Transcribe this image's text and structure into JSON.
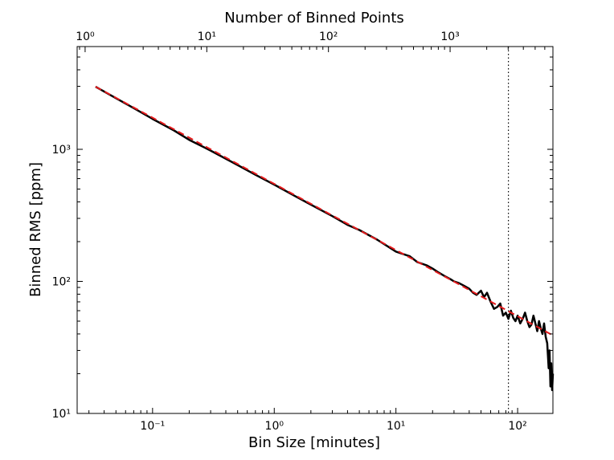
{
  "chart_data": {
    "type": "line",
    "xlabel": "Bin Size [minutes]",
    "ylabel": "Binned RMS [ppm]",
    "top_xlabel": "Number of Binned Points",
    "x_scale": "log",
    "y_scale": "log",
    "top_x_scale": "log",
    "xlim": [
      0.024,
      195
    ],
    "ylim": [
      10,
      6000
    ],
    "top_xlim": [
      0.86,
      7000
    ],
    "x_ticks": [
      {
        "value": 0.1,
        "label": "10⁻¹"
      },
      {
        "value": 1,
        "label": "10⁰"
      },
      {
        "value": 10,
        "label": "10¹"
      },
      {
        "value": 100,
        "label": "10²"
      }
    ],
    "y_ticks": [
      {
        "value": 10,
        "label": "10¹"
      },
      {
        "value": 100,
        "label": "10²"
      },
      {
        "value": 1000,
        "label": "10³"
      }
    ],
    "top_x_ticks": [
      {
        "value": 1,
        "label": "10⁰"
      },
      {
        "value": 10,
        "label": "10¹"
      },
      {
        "value": 100,
        "label": "10²"
      },
      {
        "value": 1000,
        "label": "10³"
      }
    ],
    "grid": false,
    "legend": "none",
    "vline": {
      "x": 84,
      "style": "dotted",
      "color": "#000000"
    },
    "series": [
      {
        "style": "solid",
        "color": "#000000",
        "points": [
          [
            0.034,
            2980
          ],
          [
            0.05,
            2440
          ],
          [
            0.07,
            2050
          ],
          [
            0.1,
            1700
          ],
          [
            0.15,
            1390
          ],
          [
            0.2,
            1180
          ],
          [
            0.3,
            978
          ],
          [
            0.5,
            760
          ],
          [
            0.7,
            642
          ],
          [
            1.0,
            540
          ],
          [
            1.5,
            440
          ],
          [
            2.0,
            381
          ],
          [
            3.0,
            312
          ],
          [
            4.0,
            268
          ],
          [
            5.0,
            245
          ],
          [
            7.0,
            207
          ],
          [
            10.0,
            168
          ],
          [
            13,
            155
          ],
          [
            15,
            140
          ],
          [
            18,
            132
          ],
          [
            20,
            125
          ],
          [
            22,
            118
          ],
          [
            25,
            110
          ],
          [
            28,
            104
          ],
          [
            30,
            100
          ],
          [
            33,
            97
          ],
          [
            36,
            93
          ],
          [
            40,
            88
          ],
          [
            43,
            82
          ],
          [
            46,
            79
          ],
          [
            50,
            85
          ],
          [
            53,
            76
          ],
          [
            56,
            82
          ],
          [
            60,
            70
          ],
          [
            64,
            62
          ],
          [
            68,
            64
          ],
          [
            72,
            68
          ],
          [
            76,
            55
          ],
          [
            80,
            58
          ],
          [
            84,
            52
          ],
          [
            88,
            60
          ],
          [
            92,
            53
          ],
          [
            96,
            50
          ],
          [
            100,
            55
          ],
          [
            105,
            48
          ],
          [
            110,
            52
          ],
          [
            115,
            58
          ],
          [
            120,
            50
          ],
          [
            125,
            45
          ],
          [
            130,
            47
          ],
          [
            135,
            55
          ],
          [
            140,
            48
          ],
          [
            145,
            42
          ],
          [
            150,
            50
          ],
          [
            155,
            44
          ],
          [
            160,
            40
          ],
          [
            165,
            48
          ],
          [
            170,
            38
          ],
          [
            175,
            34
          ],
          [
            180,
            22
          ],
          [
            183,
            30
          ],
          [
            186,
            16
          ],
          [
            189,
            24
          ],
          [
            192,
            15
          ],
          [
            195,
            20
          ]
        ]
      },
      {
        "style": "dashed",
        "color": "#e41a1c",
        "points": [
          [
            0.034,
            2980
          ],
          [
            195,
            39
          ]
        ]
      }
    ]
  }
}
